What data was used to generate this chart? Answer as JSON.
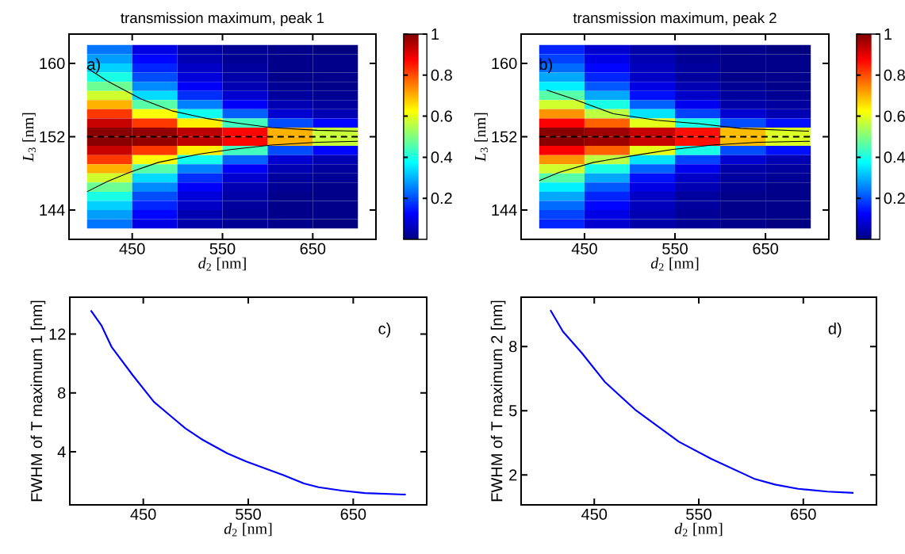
{
  "chart_data": [
    {
      "type": "heatmap",
      "title": "transmission maximum, peak 1",
      "xlabel": "*d*$_{2}$  [nm]",
      "ylabel": "*L*$_{3}$  [nm]",
      "annotations": [
        "a)"
      ],
      "x": [
        425,
        475,
        525,
        575,
        625,
        675
      ],
      "y": [
        161.5,
        160.5,
        159.5,
        158.5,
        157.5,
        156.5,
        155.5,
        154.5,
        153.5,
        152.5,
        151.5,
        150.5,
        149.5,
        148.5,
        147.5,
        146.5,
        145.5,
        144.5,
        143.5,
        142.5
      ],
      "cells": [
        [
          0.24,
          0.1,
          0.04,
          0.02,
          0.01,
          0
        ],
        [
          0.28,
          0.13,
          0.05,
          0.02,
          0.01,
          0.01
        ],
        [
          0.33,
          0.16,
          0.07,
          0.03,
          0.01,
          0.01
        ],
        [
          0.4,
          0.2,
          0.09,
          0.04,
          0.01,
          0.01
        ],
        [
          0.48,
          0.26,
          0.12,
          0.05,
          0.02,
          0.01
        ],
        [
          0.58,
          0.34,
          0.17,
          0.08,
          0.03,
          0.02
        ],
        [
          0.7,
          0.46,
          0.25,
          0.12,
          0.05,
          0.03
        ],
        [
          0.82,
          0.62,
          0.39,
          0.22,
          0.08,
          0.05
        ],
        [
          0.93,
          0.82,
          0.64,
          0.44,
          0.2,
          0.13
        ],
        [
          0.99,
          0.98,
          0.94,
          0.87,
          0.7,
          0.57
        ],
        [
          0.99,
          0.98,
          0.94,
          0.87,
          0.7,
          0.57
        ],
        [
          0.93,
          0.82,
          0.64,
          0.44,
          0.2,
          0.13
        ],
        [
          0.82,
          0.62,
          0.39,
          0.22,
          0.08,
          0.05
        ],
        [
          0.7,
          0.46,
          0.25,
          0.12,
          0.05,
          0.03
        ],
        [
          0.58,
          0.34,
          0.17,
          0.08,
          0.03,
          0.02
        ],
        [
          0.48,
          0.26,
          0.12,
          0.05,
          0.02,
          0.01
        ],
        [
          0.4,
          0.2,
          0.09,
          0.04,
          0.01,
          0.01
        ],
        [
          0.33,
          0.16,
          0.07,
          0.03,
          0.01,
          0.01
        ],
        [
          0.28,
          0.13,
          0.05,
          0.02,
          0.01,
          0.01
        ],
        [
          0.24,
          0.1,
          0.04,
          0.02,
          0.01,
          0
        ]
      ],
      "clim": [
        0,
        1
      ],
      "cticks": [
        0.2,
        0.4,
        0.6,
        0.8,
        1
      ],
      "series": [
        {
          "type": "line",
          "color": "#000000",
          "x": [
            400,
            422,
            460,
            495,
            532,
            566,
            604,
            655,
            700
          ],
          "values": [
            159.5,
            158.1,
            156.1,
            154.8,
            154.0,
            153.5,
            153.0,
            152.7,
            152.6
          ]
        },
        {
          "type": "line",
          "color": "#000000",
          "x": [
            400,
            422,
            447,
            479,
            524,
            559,
            604,
            655,
            700
          ],
          "values": [
            146.0,
            147.1,
            148.1,
            149.2,
            150.1,
            150.6,
            151.1,
            151.4,
            151.5
          ]
        }
      ],
      "ref_lines": [
        {
          "axis": "y",
          "value": 152,
          "color": "#000000",
          "line_style": "dashed"
        }
      ],
      "xlim": [
        380,
        720
      ],
      "ylim": [
        140.8,
        163.2
      ],
      "xticks": [
        450,
        550,
        650
      ],
      "yticks": [
        144,
        152,
        160
      ]
    },
    {
      "type": "heatmap",
      "title": "transmission maximum, peak 2",
      "xlabel": "*d*$_{2}$  [nm]",
      "ylabel": "*L*$_{3}$  [nm]",
      "annotations": [
        "b)"
      ],
      "x": [
        425,
        475,
        525,
        575,
        625,
        675
      ],
      "y": [
        161.5,
        160.5,
        159.5,
        158.5,
        157.5,
        156.5,
        155.5,
        154.5,
        153.5,
        152.5,
        151.5,
        150.5,
        149.5,
        148.5,
        147.5,
        146.5,
        145.5,
        144.5,
        143.5,
        142.5
      ],
      "cells": [
        [
          0.16,
          0.08,
          0.04,
          0.02,
          0.01,
          0
        ],
        [
          0.19,
          0.1,
          0.05,
          0.02,
          0.01,
          0.01
        ],
        [
          0.23,
          0.13,
          0.06,
          0.03,
          0.01,
          0.01
        ],
        [
          0.29,
          0.16,
          0.07,
          0.03,
          0.01,
          0.01
        ],
        [
          0.36,
          0.21,
          0.1,
          0.05,
          0.02,
          0.01
        ],
        [
          0.46,
          0.29,
          0.14,
          0.07,
          0.03,
          0.02
        ],
        [
          0.58,
          0.4,
          0.22,
          0.11,
          0.04,
          0.03
        ],
        [
          0.73,
          0.56,
          0.35,
          0.19,
          0.08,
          0.05
        ],
        [
          0.88,
          0.78,
          0.6,
          0.4,
          0.2,
          0.14
        ],
        [
          0.99,
          0.97,
          0.93,
          0.86,
          0.69,
          0.59
        ],
        [
          0.99,
          0.97,
          0.93,
          0.86,
          0.69,
          0.59
        ],
        [
          0.88,
          0.78,
          0.6,
          0.4,
          0.2,
          0.14
        ],
        [
          0.73,
          0.56,
          0.35,
          0.19,
          0.08,
          0.05
        ],
        [
          0.58,
          0.4,
          0.22,
          0.11,
          0.04,
          0.03
        ],
        [
          0.46,
          0.29,
          0.14,
          0.07,
          0.03,
          0.02
        ],
        [
          0.36,
          0.21,
          0.1,
          0.05,
          0.02,
          0.01
        ],
        [
          0.29,
          0.16,
          0.07,
          0.03,
          0.01,
          0.01
        ],
        [
          0.23,
          0.13,
          0.06,
          0.03,
          0.01,
          0.01
        ],
        [
          0.19,
          0.1,
          0.05,
          0.02,
          0.01,
          0.01
        ],
        [
          0.16,
          0.08,
          0.04,
          0.02,
          0.01,
          0
        ]
      ],
      "clim": [
        0,
        1
      ],
      "cticks": [
        0.2,
        0.4,
        0.6,
        0.8,
        1
      ],
      "series": [
        {
          "type": "line",
          "color": "#000000",
          "x": [
            408,
            438,
            482,
            530,
            578,
            623,
            698
          ],
          "values": [
            157.1,
            156.1,
            154.5,
            153.8,
            153.4,
            152.9,
            152.6
          ]
        },
        {
          "type": "line",
          "color": "#000000",
          "x": [
            400,
            422,
            460,
            508,
            546,
            591,
            642,
            699
          ],
          "values": [
            147.2,
            148.1,
            149.2,
            150.0,
            150.6,
            151.1,
            151.4,
            151.5
          ]
        }
      ],
      "ref_lines": [
        {
          "axis": "y",
          "value": 152,
          "color": "#000000",
          "line_style": "dashed"
        }
      ],
      "xlim": [
        380,
        720
      ],
      "ylim": [
        140.8,
        163.2
      ],
      "xticks": [
        450,
        550,
        650
      ],
      "yticks": [
        144,
        152,
        160
      ]
    },
    {
      "type": "line",
      "xlabel": "*d*$_{2}$  [nm]",
      "ylabel": "FWHM of T maximum 1  [nm]",
      "annotations": [
        "c)"
      ],
      "color": "#0000ff",
      "x": [
        400,
        410,
        420,
        440,
        460,
        480,
        490,
        507,
        530,
        548,
        567,
        584,
        603,
        617,
        639,
        661,
        700
      ],
      "values": [
        13.6,
        12.6,
        11.1,
        9.2,
        7.4,
        6.2,
        5.6,
        4.8,
        3.9,
        3.35,
        2.85,
        2.4,
        1.85,
        1.6,
        1.37,
        1.2,
        1.1
      ],
      "xlim": [
        380,
        720
      ],
      "ylim": [
        0.4,
        14.5
      ],
      "xticks": [
        450,
        550,
        650
      ],
      "yticks": [
        4,
        8,
        12
      ]
    },
    {
      "type": "line",
      "xlabel": "*d*$_{2}$  [nm]",
      "ylabel": "FWHM of T maximum 2  [nm]",
      "annotations": [
        "d)"
      ],
      "color": "#0000ff",
      "x": [
        408,
        420,
        438,
        460,
        489,
        531,
        562,
        604,
        623,
        645,
        673,
        698
      ],
      "values": [
        9.7,
        8.7,
        7.7,
        6.35,
        5.05,
        3.55,
        2.75,
        1.8,
        1.55,
        1.35,
        1.22,
        1.16
      ],
      "xlim": [
        380,
        720
      ],
      "ylim": [
        0.6,
        10.3
      ],
      "xticks": [
        450,
        550,
        650
      ],
      "yticks": [
        2,
        5,
        8
      ]
    }
  ]
}
